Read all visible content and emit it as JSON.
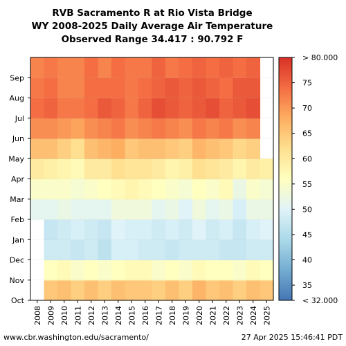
{
  "title_lines": [
    "RVB Sacramento R at Rio Vista Bridge",
    "WY 2008-2025 Daily Average Air Temperature",
    "Observed Range 34.417 : 90.792 F"
  ],
  "footer": {
    "source": "www.cbr.washington.edu/sacramento/",
    "timestamp": "27 Apr 2025 15:46:41 PDT"
  },
  "chart_data": {
    "type": "heatmap",
    "title": "RVB Sacramento R at Rio Vista Bridge WY 2008-2025 Daily Average Air Temperature",
    "subtitle": "Observed Range 34.417 : 90.792 F",
    "x": [
      "2008",
      "2009",
      "2010",
      "2011",
      "2012",
      "2013",
      "2014",
      "2015",
      "2016",
      "2017",
      "2018",
      "2019",
      "2020",
      "2021",
      "2022",
      "2023",
      "2024",
      "2025"
    ],
    "y": [
      "Oct",
      "Nov",
      "Dec",
      "Jan",
      "Feb",
      "Mar",
      "Apr",
      "May",
      "Jun",
      "Jul",
      "Aug",
      "Sep"
    ],
    "values": [
      [
        null,
        65,
        66,
        64,
        66,
        64,
        66,
        65,
        65,
        64,
        66,
        64,
        67,
        65,
        66,
        64,
        66,
        65
      ],
      [
        null,
        56,
        57,
        55,
        56,
        55,
        56,
        57,
        57,
        55,
        56,
        55,
        57,
        56,
        56,
        55,
        57,
        56
      ],
      [
        null,
        48,
        48,
        47,
        48,
        46,
        49,
        49,
        48,
        48,
        47,
        48,
        48,
        48,
        47,
        47,
        48,
        48
      ],
      [
        null,
        47,
        48,
        49,
        48,
        47,
        50,
        49,
        49,
        48,
        49,
        48,
        50,
        48,
        49,
        47,
        49,
        50
      ],
      [
        51,
        51,
        52,
        51,
        51,
        51,
        53,
        53,
        53,
        51,
        52,
        50,
        53,
        51,
        52,
        49,
        52,
        52
      ],
      [
        55,
        55,
        55,
        54,
        55,
        56,
        57,
        58,
        57,
        56,
        55,
        54,
        56,
        55,
        57,
        52,
        55,
        54
      ],
      [
        60,
        59,
        58,
        57,
        60,
        60,
        62,
        61,
        61,
        60,
        58,
        59,
        62,
        61,
        60,
        58,
        60,
        59
      ],
      [
        66,
        66,
        64,
        62,
        66,
        67,
        68,
        65,
        66,
        66,
        65,
        64,
        67,
        66,
        65,
        63,
        64,
        null
      ],
      [
        71,
        71,
        70,
        69,
        71,
        72,
        73,
        71,
        72,
        73,
        72,
        71,
        73,
        72,
        73,
        71,
        72,
        null
      ],
      [
        74,
        75,
        73,
        73,
        74,
        76,
        75,
        73,
        75,
        77,
        76,
        75,
        76,
        77,
        75,
        76,
        77,
        null
      ],
      [
        73,
        74,
        72,
        72,
        74,
        74,
        74,
        73,
        74,
        75,
        76,
        75,
        76,
        75,
        74,
        76,
        76,
        null
      ],
      [
        72,
        73,
        72,
        72,
        74,
        72,
        74,
        73,
        73,
        75,
        73,
        74,
        75,
        74,
        75,
        74,
        75,
        null
      ]
    ],
    "missing": [
      {
        "year": "2008",
        "months": [
          "Oct",
          "Nov",
          "Dec",
          "Jan"
        ]
      },
      {
        "year": "2025",
        "months": [
          "May",
          "Jun",
          "Jul",
          "Aug",
          "Sep"
        ]
      }
    ],
    "colorbar": {
      "ticks": [
        35,
        40,
        45,
        50,
        55,
        60,
        65,
        70,
        75
      ],
      "max_label": "> 80.000",
      "min_label": "< 32.000",
      "range": [
        32,
        80
      ],
      "colors": [
        "#4575b4",
        "#74add1",
        "#abd9e9",
        "#e0f3f8",
        "#ffffbf",
        "#fee090",
        "#fdae61",
        "#f46d43",
        "#d73027"
      ]
    },
    "grid": true
  }
}
